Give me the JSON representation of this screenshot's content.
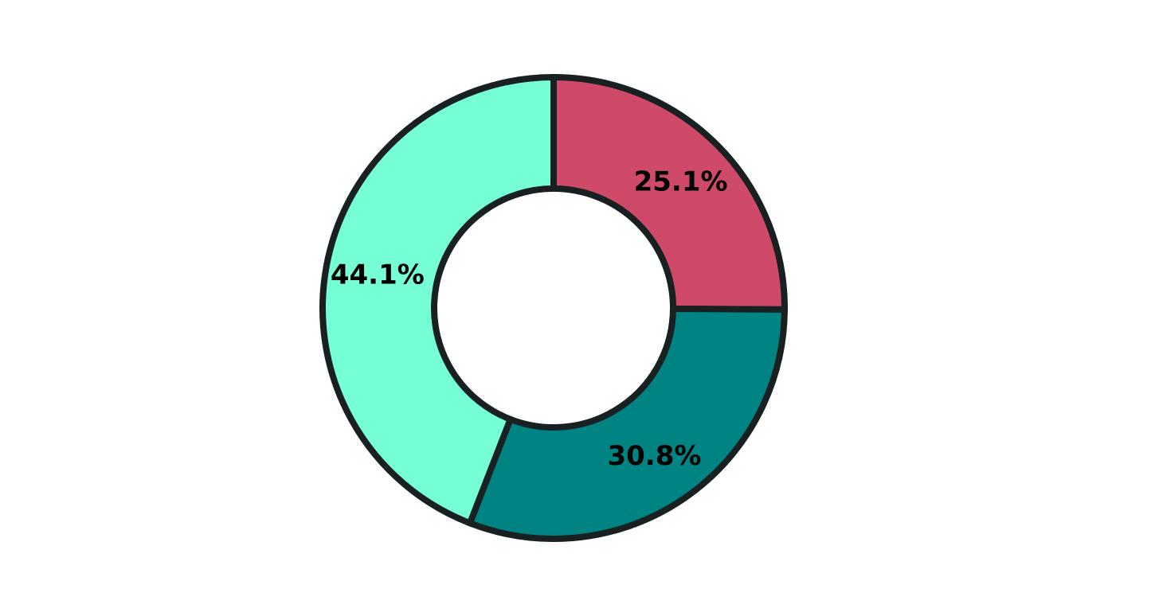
{
  "chart_data": {
    "type": "pie",
    "variant": "donut",
    "title": "",
    "slices": [
      {
        "label": "25.1%",
        "value": 25.1,
        "color": "#CF4A69"
      },
      {
        "label": "30.8%",
        "value": 30.8,
        "color": "#008383"
      },
      {
        "label": "44.1%",
        "value": 44.1,
        "color": "#76FFD6"
      }
    ],
    "start_angle_deg": 90,
    "direction": "clockwise",
    "edge_color": "#182022",
    "legend": "none"
  }
}
